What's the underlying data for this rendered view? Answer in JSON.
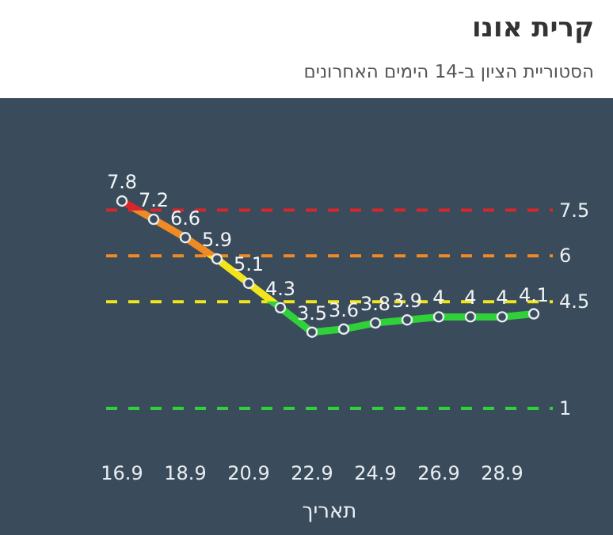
{
  "chart_data": {
    "type": "line",
    "title": "קרית אונו",
    "subtitle": "הסטוריית הציון ב-14 הימים האחרונים",
    "xlabel": "תאריך",
    "categories": [
      "16.9",
      null,
      "18.9",
      null,
      "20.9",
      null,
      "22.9",
      null,
      "24.9",
      null,
      "26.9",
      null,
      "28.9",
      null
    ],
    "series": [
      {
        "values": [
          7.8,
          7.2,
          6.6,
          5.9,
          5.1,
          4.3,
          3.5,
          3.6,
          3.8,
          3.9,
          4,
          4,
          4,
          4.1
        ]
      }
    ],
    "tick_labels": "x",
    "marker": "circle",
    "line_style": "solid",
    "data_labels": true,
    "ref_lines": [
      {
        "axis": "y",
        "value": 7.5,
        "label": "7.5",
        "color": "#d9262b",
        "line_style": "dashed"
      },
      {
        "axis": "y",
        "value": 6,
        "label": "6",
        "color": "#f08a24",
        "line_style": "dashed"
      },
      {
        "axis": "y",
        "value": 4.5,
        "label": "4.5",
        "color": "#f3e51c",
        "line_style": "dashed"
      },
      {
        "axis": "y",
        "value": 1,
        "label": "1",
        "color": "#2fd03a",
        "line_style": "dashed"
      }
    ]
  }
}
